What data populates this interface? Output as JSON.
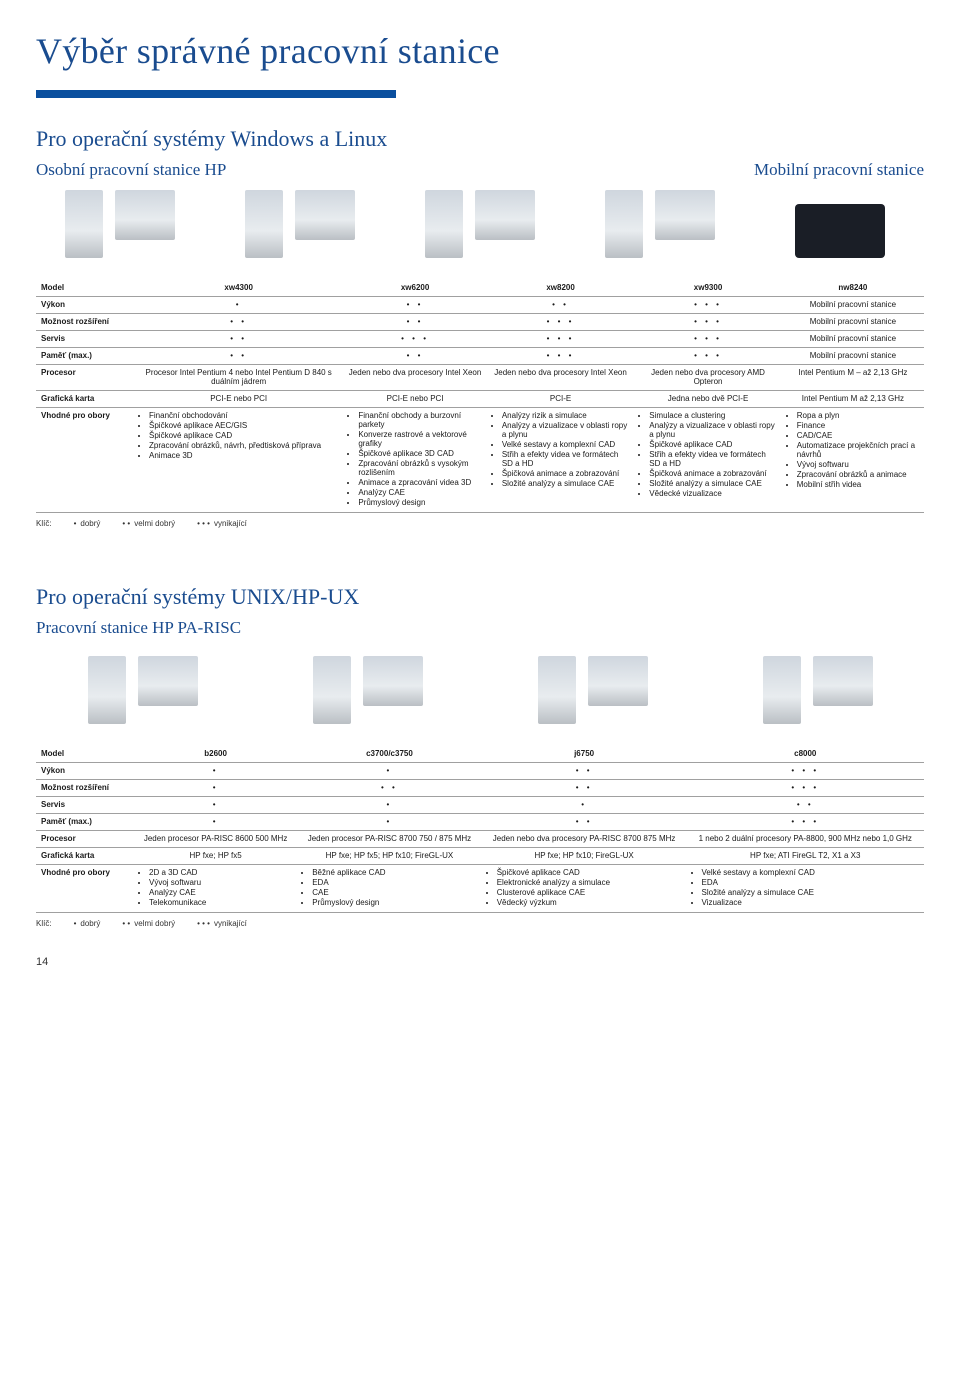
{
  "title": "Výběr správné pracovní stanice",
  "section1": {
    "heading": "Pro operační systémy Windows a Linux",
    "leftLabel": "Osobní pracovní stanice HP",
    "rightLabel": "Mobilní pracovní stanice",
    "table": {
      "headers": [
        "Model",
        "xw4300",
        "xw6200",
        "xw8200",
        "xw9300",
        "nw8240"
      ],
      "rows": [
        {
          "head": "Výkon",
          "cells": [
            "•",
            "• •",
            "• •",
            "• • •",
            "Mobilní pracovní stanice"
          ]
        },
        {
          "head": "Možnost rozšíření",
          "cells": [
            "• •",
            "• •",
            "• • •",
            "• • •",
            "Mobilní pracovní stanice"
          ]
        },
        {
          "head": "Servis",
          "cells": [
            "• •",
            "• • •",
            "• • •",
            "• • •",
            "Mobilní pracovní stanice"
          ]
        },
        {
          "head": "Paměť (max.)",
          "cells": [
            "• •",
            "• •",
            "• • •",
            "• • •",
            "Mobilní pracovní stanice"
          ]
        },
        {
          "head": "Procesor",
          "cells": [
            "Procesor Intel Pentium 4 nebo Intel Pentium D 840 s duálním jádrem",
            "Jeden nebo dva procesory Intel Xeon",
            "Jeden nebo dva procesory Intel Xeon",
            "Jeden nebo dva procesory AMD Opteron",
            "Intel Pentium M – až 2,13 GHz"
          ]
        },
        {
          "head": "Grafická karta",
          "cells": [
            "PCI-E nebo PCI",
            "PCI-E nebo PCI",
            "PCI-E",
            "Jedna nebo dvě PCI-E",
            "Intel Pentium M až 2,13 GHz"
          ]
        },
        {
          "head": "Vhodné pro obory",
          "lists": [
            [
              "Finanční obchodování",
              "Špičkové aplikace AEC/GIS",
              "Špičkové aplikace CAD",
              "Zpracování obrázků, návrh, předtisková příprava",
              "Animace 3D"
            ],
            [
              "Finanční obchody a burzovní parkety",
              "Konverze rastrové a vektorové grafiky",
              "Špičkové aplikace 3D CAD",
              "Zpracování obrázků s vysokým rozlišením",
              "Animace a zpracování videa 3D",
              "Analýzy CAE",
              "Průmyslový design"
            ],
            [
              "Analýzy rizik a simulace",
              "Analýzy a vizualizace v oblasti ropy a plynu",
              "Velké sestavy a komplexní CAD",
              "Střih a efekty videa ve formátech SD a HD",
              "Špičková animace a zobrazování",
              "Složité analýzy a simulace CAE"
            ],
            [
              "Simulace a clustering",
              "Analýzy a vizualizace v oblasti ropy a plynu",
              "Špičkové aplikace CAD",
              "Střih a efekty videa ve formátech SD a HD",
              "Špičková animace a zobrazování",
              "Složité analýzy a simulace CAE",
              "Vědecké vizualizace"
            ],
            [
              "Ropa a plyn",
              "Finance",
              "CAD/CAE",
              "Automatizace projekčních prací a návrhů",
              "Vývoj softwaru",
              "Zpracování obrázků a animace",
              "Mobilní střih videa"
            ]
          ]
        }
      ]
    }
  },
  "legend": {
    "prefix": "Klíč:",
    "items": [
      {
        "k": "•",
        "v": "dobrý"
      },
      {
        "k": "• •",
        "v": "velmi dobrý"
      },
      {
        "k": "• • •",
        "v": "vynikající"
      }
    ]
  },
  "section2": {
    "heading": "Pro operační systémy UNIX/HP-UX",
    "sub": "Pracovní stanice HP PA-RISC",
    "table": {
      "headers": [
        "Model",
        "b2600",
        "c3700/c3750",
        "j6750",
        "c8000"
      ],
      "rows": [
        {
          "head": "Výkon",
          "cells": [
            "•",
            "•",
            "• •",
            "• • •"
          ]
        },
        {
          "head": "Možnost rozšíření",
          "cells": [
            "•",
            "• •",
            "• •",
            "• • •"
          ]
        },
        {
          "head": "Servis",
          "cells": [
            "•",
            "•",
            "•",
            "• •"
          ]
        },
        {
          "head": "Paměť (max.)",
          "cells": [
            "•",
            "•",
            "• •",
            "• • •"
          ]
        },
        {
          "head": "Procesor",
          "cells": [
            "Jeden procesor PA-RISC 8600 500 MHz",
            "Jeden procesor PA-RISC 8700 750 / 875 MHz",
            "Jeden nebo dva procesory PA-RISC 8700 875 MHz",
            "1 nebo 2 duální procesory PA-8800, 900 MHz nebo 1,0 GHz"
          ]
        },
        {
          "head": "Grafická karta",
          "cells": [
            "HP fxe; HP fx5",
            "HP fxe; HP fx5; HP fx10; FireGL-UX",
            "HP fxe; HP fx10; FireGL-UX",
            "HP fxe; ATI FireGL T2, X1 a X3"
          ]
        },
        {
          "head": "Vhodné pro obory",
          "lists": [
            [
              "2D a 3D CAD",
              "Vývoj softwaru",
              "Analýzy CAE",
              "Telekomunikace"
            ],
            [
              "Běžné aplikace CAD",
              "EDA",
              "CAE",
              "Průmyslový design"
            ],
            [
              "Špičkové aplikace CAD",
              "Elektronické analýzy a simulace",
              "Clusterové aplikace CAE",
              "Vědecký výzkum"
            ],
            [
              "Velké sestavy a komplexní CAD",
              "EDA",
              "Složité analýzy a simulace CAE",
              "Vizualizace"
            ]
          ]
        }
      ]
    }
  },
  "pageNumber": "14"
}
